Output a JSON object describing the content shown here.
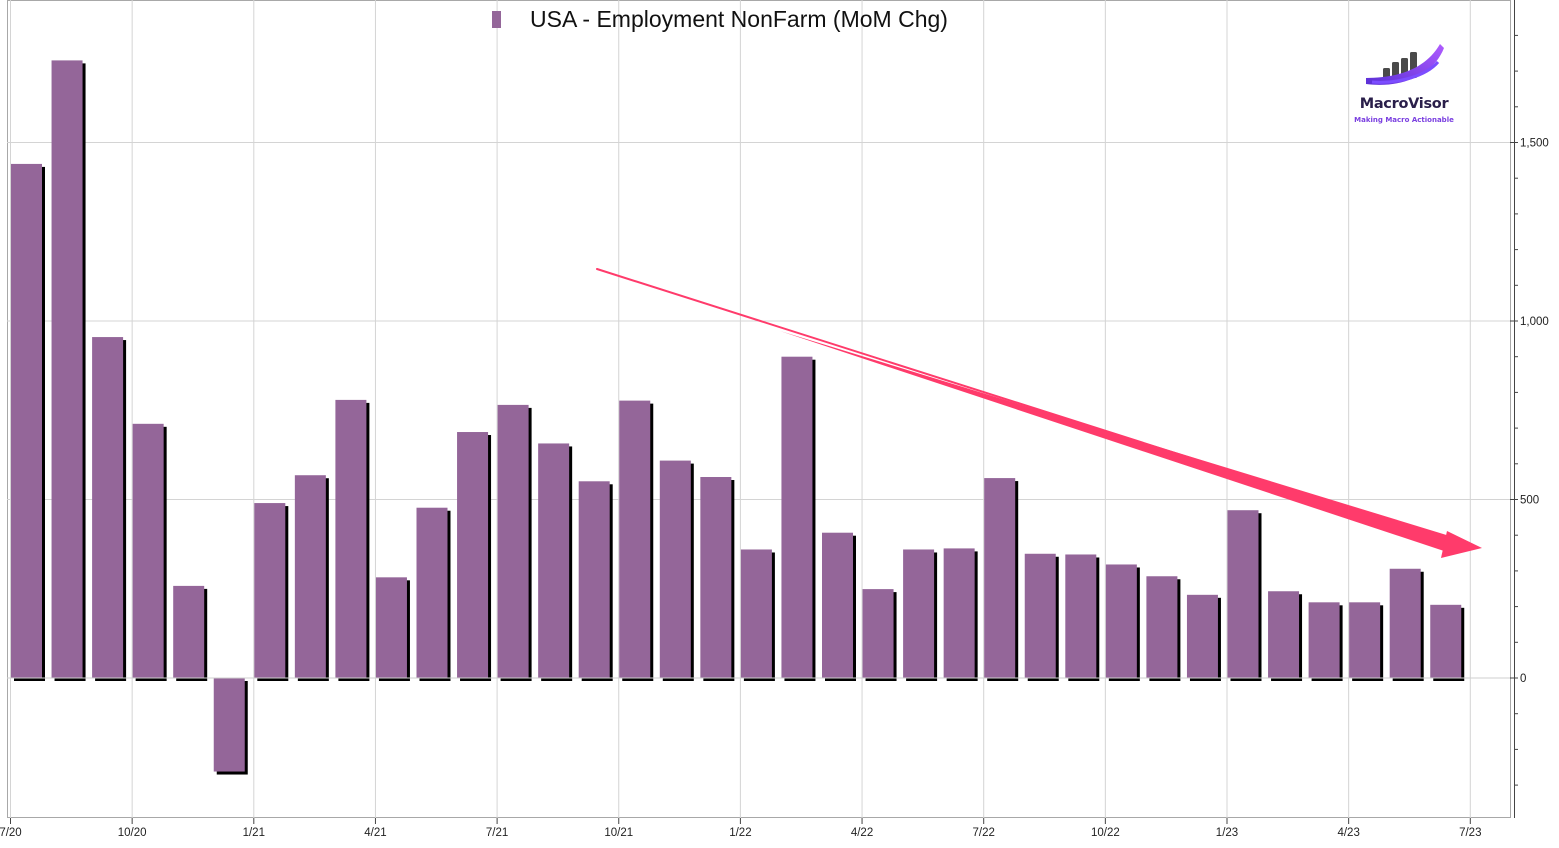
{
  "chart_data": {
    "type": "bar",
    "title": "",
    "legend": {
      "placement": "top-center",
      "entries": [
        "USA - Employment NonFarm (MoM Chg)"
      ]
    },
    "series": [
      {
        "name": "USA - Employment NonFarm (MoM Chg)",
        "color": "#946699",
        "x": [
          "2020-07",
          "2020-08",
          "2020-09",
          "2020-10",
          "2020-11",
          "2020-12",
          "2021-01",
          "2021-02",
          "2021-03",
          "2021-04",
          "2021-05",
          "2021-06",
          "2021-07",
          "2021-08",
          "2021-09",
          "2021-10",
          "2021-11",
          "2021-12",
          "2022-01",
          "2022-02",
          "2022-03",
          "2022-04",
          "2022-05",
          "2022-06",
          "2022-07",
          "2022-08",
          "2022-09",
          "2022-10",
          "2022-11",
          "2022-12",
          "2023-01",
          "2023-02",
          "2023-03",
          "2023-04",
          "2023-05",
          "2023-06"
        ],
        "values": [
          1440,
          1730,
          955,
          712,
          258,
          -262,
          490,
          568,
          779,
          282,
          477,
          689,
          765,
          657,
          551,
          777,
          609,
          563,
          360,
          900,
          407,
          249,
          360,
          363,
          560,
          348,
          346,
          318,
          285,
          233,
          470,
          243,
          212,
          212,
          306,
          205
        ]
      }
    ],
    "xlabel": "",
    "ylabel": "",
    "x_ticks": [
      "7/20",
      "10/20",
      "1/21",
      "4/21",
      "7/21",
      "10/21",
      "1/22",
      "4/22",
      "7/22",
      "10/22",
      "1/23",
      "4/23",
      "7/23"
    ],
    "y_ticks": [
      "0",
      "500",
      "1,000",
      "1,500"
    ],
    "ylim": [
      -310,
      1880
    ],
    "grid": true,
    "annotation": {
      "type": "trend-arrow",
      "direction": "down",
      "color": "#ff3b6b"
    }
  },
  "branding": {
    "name": "MacroVisor",
    "tagline": "Making Macro Actionable",
    "icon": "rising-bars-logo-icon"
  }
}
